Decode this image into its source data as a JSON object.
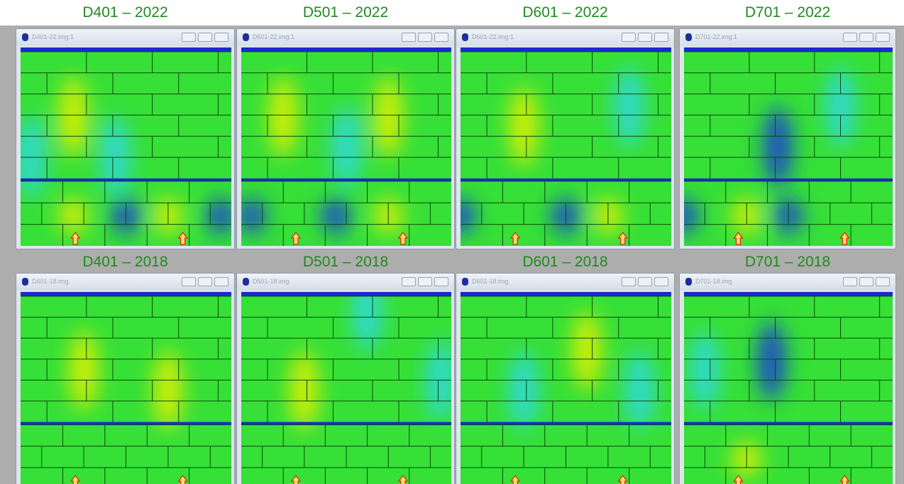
{
  "panels": [
    {
      "label": "D401 – 2022",
      "window_title": "D401-22.img:1"
    },
    {
      "label": "D501 – 2022",
      "window_title": "D501-22.img:1"
    },
    {
      "label": "D601 – 2022",
      "window_title": "D601-22.img:1"
    },
    {
      "label": "D701 – 2022",
      "window_title": "D701-22.img:1"
    },
    {
      "label": "D401 – 2018",
      "window_title": "D401-18.img"
    },
    {
      "label": "D501 – 2018",
      "window_title": "D501-18.img"
    },
    {
      "label": "D601 – 2018",
      "window_title": "D601-18.img"
    },
    {
      "label": "D701 – 2018",
      "window_title": "D701-18.img"
    }
  ]
}
